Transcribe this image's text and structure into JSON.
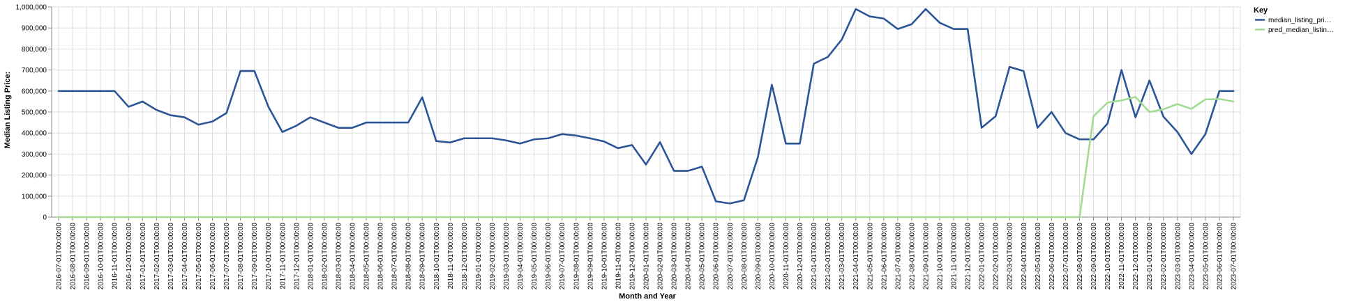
{
  "chart_data": {
    "type": "line",
    "xlabel": "Month and Year",
    "ylabel": "Median Listing Price:",
    "ylim": [
      0,
      1000000
    ],
    "yticks": [
      "0",
      "100,000",
      "200,000",
      "300,000",
      "400,000",
      "500,000",
      "600,000",
      "700,000",
      "800,000",
      "900,000",
      "1,000,000"
    ],
    "grid": true,
    "legend": {
      "title": "Key",
      "placement": "top-right"
    },
    "x": [
      "2016-07-01T00:00:00",
      "2016-08-01T00:00:00",
      "2016-09-01T00:00:00",
      "2016-10-01T00:00:00",
      "2016-11-01T00:00:00",
      "2016-12-01T00:00:00",
      "2017-01-01T00:00:00",
      "2017-02-01T00:00:00",
      "2017-03-01T00:00:00",
      "2017-04-01T00:00:00",
      "2017-05-01T00:00:00",
      "2017-06-01T00:00:00",
      "2017-07-01T00:00:00",
      "2017-08-01T00:00:00",
      "2017-09-01T00:00:00",
      "2017-10-01T00:00:00",
      "2017-11-01T00:00:00",
      "2017-12-01T00:00:00",
      "2018-01-01T00:00:00",
      "2018-02-01T00:00:00",
      "2018-03-01T00:00:00",
      "2018-04-01T00:00:00",
      "2018-05-01T00:00:00",
      "2018-06-01T00:00:00",
      "2018-07-01T00:00:00",
      "2018-08-01T00:00:00",
      "2018-09-01T00:00:00",
      "2018-10-01T00:00:00",
      "2018-11-01T00:00:00",
      "2018-12-01T00:00:00",
      "2019-01-01T00:00:00",
      "2019-02-01T00:00:00",
      "2019-03-01T00:00:00",
      "2019-04-01T00:00:00",
      "2019-05-01T00:00:00",
      "2019-06-01T00:00:00",
      "2019-07-01T00:00:00",
      "2019-08-01T00:00:00",
      "2019-09-01T00:00:00",
      "2019-10-01T00:00:00",
      "2019-11-01T00:00:00",
      "2019-12-01T00:00:00",
      "2020-01-01T00:00:00",
      "2020-02-01T00:00:00",
      "2020-03-01T00:00:00",
      "2020-04-01T00:00:00",
      "2020-05-01T00:00:00",
      "2020-06-01T00:00:00",
      "2020-07-01T00:00:00",
      "2020-08-01T00:00:00",
      "2020-09-01T00:00:00",
      "2020-10-01T00:00:00",
      "2020-11-01T00:00:00",
      "2020-12-01T00:00:00",
      "2021-01-01T00:00:00",
      "2021-02-01T00:00:00",
      "2021-03-01T00:00:00",
      "2021-04-01T00:00:00",
      "2021-05-01T00:00:00",
      "2021-06-01T00:00:00",
      "2021-07-01T00:00:00",
      "2021-08-01T00:00:00",
      "2021-09-01T00:00:00",
      "2021-10-01T00:00:00",
      "2021-11-01T00:00:00",
      "2021-12-01T00:00:00",
      "2022-01-01T00:00:00",
      "2022-02-01T00:00:00",
      "2022-03-01T00:00:00",
      "2022-04-01T00:00:00",
      "2022-05-01T00:00:00",
      "2022-06-01T00:00:00",
      "2022-07-01T00:00:00",
      "2022-08-01T00:00:00",
      "2022-09-01T00:00:00",
      "2022-10-01T00:00:00",
      "2022-11-01T00:00:00",
      "2022-12-01T00:00:00",
      "2023-01-01T00:00:00",
      "2023-02-01T00:00:00",
      "2023-03-01T00:00:00",
      "2023-04-01T00:00:00",
      "2023-05-01T00:00:00",
      "2023-06-01T00:00:00",
      "2023-07-01T00:00:00"
    ],
    "series": [
      {
        "name": "median_listing_pri…",
        "color": "#2c5597",
        "values": [
          600000,
          600000,
          600000,
          600000,
          600000,
          525000,
          550000,
          510000,
          485000,
          475000,
          440000,
          455000,
          495000,
          695000,
          695000,
          525000,
          405000,
          435000,
          475000,
          450000,
          425000,
          425000,
          450000,
          450000,
          450000,
          450000,
          570000,
          362000,
          355000,
          375000,
          375000,
          375000,
          365000,
          350000,
          370000,
          375000,
          395000,
          388000,
          375000,
          360000,
          328000,
          343000,
          250000,
          357000,
          220000,
          220000,
          240000,
          75000,
          65000,
          80000,
          285000,
          630000,
          350000,
          350000,
          730000,
          762000,
          845000,
          990000,
          955000,
          945000,
          895000,
          918000,
          990000,
          925000,
          895000,
          895000,
          425000,
          480000,
          715000,
          695000,
          425000,
          500000,
          400000,
          370000,
          370000,
          445000,
          700000,
          475000,
          650000,
          478000,
          405000,
          300000,
          395000,
          600000,
          600000
        ]
      },
      {
        "name": "pred_median_listin…",
        "color": "#a2dc94",
        "values": [
          0,
          0,
          0,
          0,
          0,
          0,
          0,
          0,
          0,
          0,
          0,
          0,
          0,
          0,
          0,
          0,
          0,
          0,
          0,
          0,
          0,
          0,
          0,
          0,
          0,
          0,
          0,
          0,
          0,
          0,
          0,
          0,
          0,
          0,
          0,
          0,
          0,
          0,
          0,
          0,
          0,
          0,
          0,
          0,
          0,
          0,
          0,
          0,
          0,
          0,
          0,
          0,
          0,
          0,
          0,
          0,
          0,
          0,
          0,
          0,
          0,
          0,
          0,
          0,
          0,
          0,
          0,
          0,
          0,
          0,
          0,
          0,
          0,
          0,
          480000,
          545000,
          555000,
          572000,
          500000,
          513000,
          538000,
          515000,
          560000,
          562000,
          550000
        ]
      }
    ]
  }
}
